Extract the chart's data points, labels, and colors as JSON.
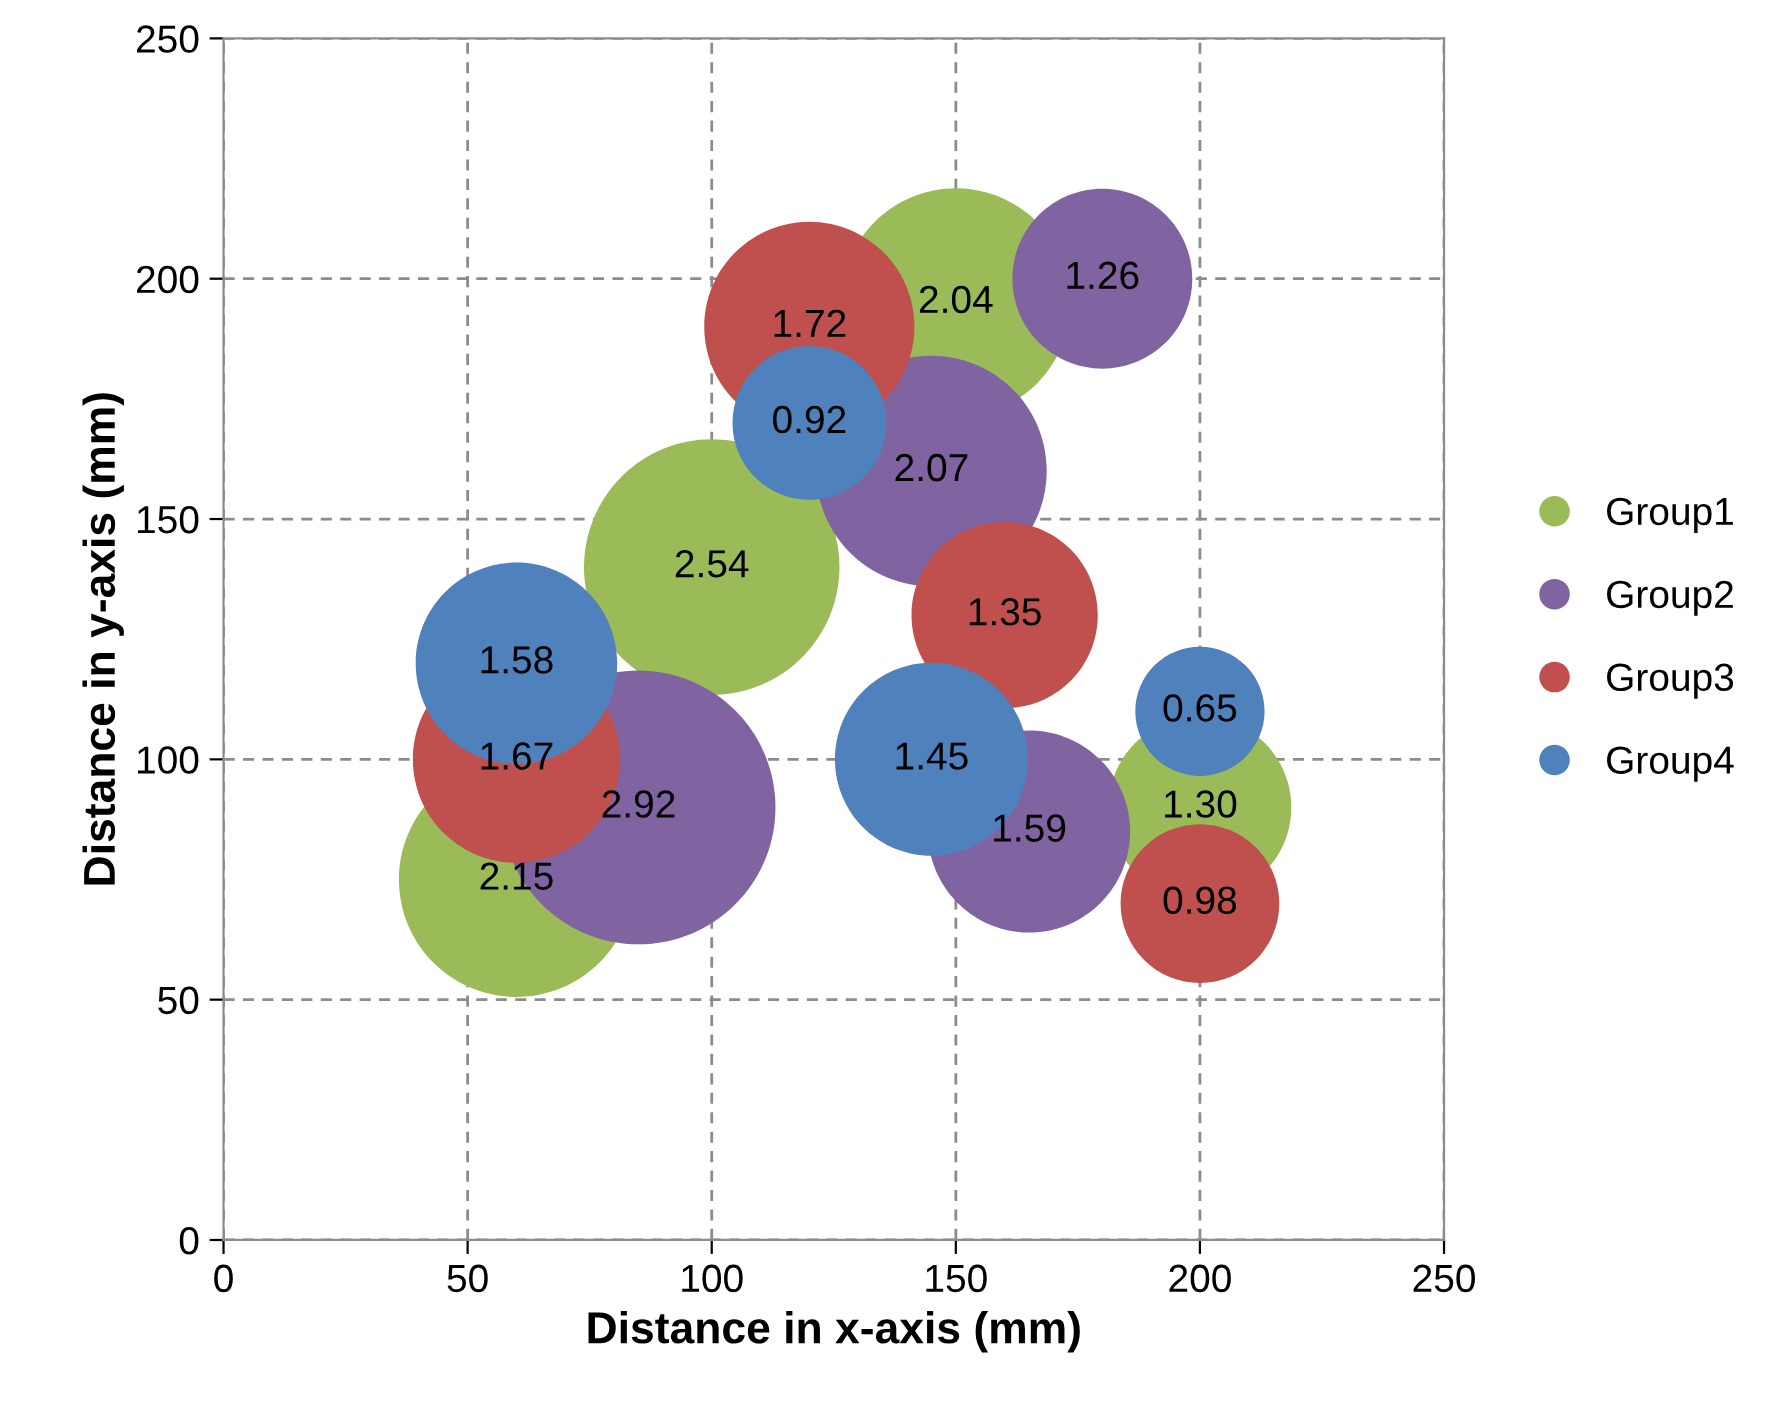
{
  "chart_data": {
    "type": "bubble",
    "xlabel": "Distance in x-axis (mm)",
    "ylabel": "Distance in y-axis (mm)",
    "xlim": [
      0,
      250
    ],
    "xticks": [
      0,
      50,
      100,
      150,
      200,
      250
    ],
    "ylim": [
      0,
      250
    ],
    "yticks": [
      0,
      50,
      100,
      150,
      200,
      250
    ],
    "grid": true,
    "legend": "right",
    "series": [
      {
        "name": "Group1",
        "color": "#9bbb59",
        "x": [
          60,
          100,
          150,
          200
        ],
        "values": [
          75,
          140,
          195,
          90
        ],
        "sizes": [
          2.15,
          2.54,
          2.04,
          1.3
        ],
        "value_labels": [
          "2.15",
          "2.54",
          "2.04",
          "1.30"
        ]
      },
      {
        "name": "Group2",
        "color": "#8064a2",
        "x": [
          85,
          145,
          180,
          165
        ],
        "values": [
          90,
          160,
          200,
          85
        ],
        "sizes": [
          2.92,
          2.07,
          1.26,
          1.59
        ],
        "value_labels": [
          "2.92",
          "2.07",
          "1.26",
          "1.59"
        ]
      },
      {
        "name": "Group3",
        "color": "#c0504d",
        "x": [
          60,
          120,
          160,
          200
        ],
        "values": [
          100,
          190,
          130,
          70
        ],
        "sizes": [
          1.67,
          1.72,
          1.35,
          0.98
        ],
        "value_labels": [
          "1.67",
          "1.72",
          "1.35",
          "0.98"
        ]
      },
      {
        "name": "Group4",
        "color": "#4f81bd",
        "x": [
          60,
          120,
          145,
          200
        ],
        "values": [
          120,
          170,
          100,
          110
        ],
        "sizes": [
          1.58,
          0.92,
          1.45,
          0.65
        ],
        "value_labels": [
          "1.58",
          "0.92",
          "1.45",
          "0.65"
        ]
      }
    ]
  }
}
